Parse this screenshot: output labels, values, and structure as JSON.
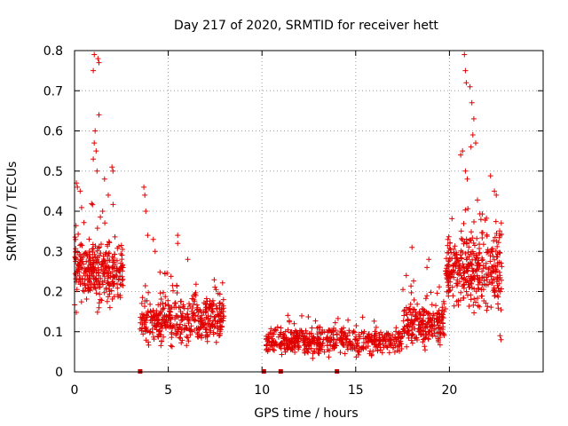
{
  "chart_data": {
    "type": "scatter",
    "title": "Day 217 of 2020, SRMTID for receiver hett",
    "xlabel": "GPS time / hours",
    "ylabel": "SRMTID / TECUs",
    "xlim": [
      0,
      25
    ],
    "ylim": [
      0,
      0.8
    ],
    "xticks": [
      0,
      5,
      10,
      15,
      20
    ],
    "xtick_labels": [
      "0",
      "5",
      "10",
      "15",
      "20"
    ],
    "yticks": [
      0,
      0.1,
      0.2,
      0.3,
      0.4,
      0.5,
      0.6,
      0.7,
      0.8
    ],
    "ytick_labels": [
      "0",
      "0.1",
      "0.2",
      "0.3",
      "0.4",
      "0.5",
      "0.6",
      "0.7",
      "0.8"
    ],
    "grid": true,
    "marker": "+",
    "color": "#ff0000",
    "marker_color": "#e00000",
    "gap_markers_color": "#cc0000",
    "gap_markers": [
      3.5,
      10.1,
      11.0,
      14.0
    ],
    "series": [
      {
        "name": "SRMTID",
        "segments": [
          {
            "x_start": 0.0,
            "x_end": 2.6,
            "n": 320,
            "base": 0.25,
            "spread": 0.09,
            "outliers": [
              [
                1.05,
                0.79
              ],
              [
                1.0,
                0.75
              ],
              [
                1.25,
                0.78
              ],
              [
                1.3,
                0.77
              ],
              [
                1.3,
                0.64
              ],
              [
                1.1,
                0.6
              ],
              [
                1.05,
                0.57
              ],
              [
                1.15,
                0.55
              ],
              [
                1.0,
                0.53
              ],
              [
                1.2,
                0.5
              ],
              [
                1.6,
                0.48
              ],
              [
                2.0,
                0.51
              ],
              [
                2.05,
                0.5
              ],
              [
                0.1,
                0.47
              ],
              [
                0.15,
                0.46
              ],
              [
                0.3,
                0.45
              ],
              [
                1.5,
                0.4
              ],
              [
                1.8,
                0.44
              ]
            ]
          },
          {
            "x_start": 3.5,
            "x_end": 8.0,
            "n": 420,
            "base": 0.13,
            "spread": 0.07,
            "outliers": [
              [
                3.7,
                0.46
              ],
              [
                3.75,
                0.44
              ],
              [
                3.8,
                0.4
              ],
              [
                3.9,
                0.34
              ],
              [
                5.5,
                0.34
              ],
              [
                5.5,
                0.32
              ],
              [
                4.2,
                0.33
              ],
              [
                4.3,
                0.3
              ]
            ]
          },
          {
            "x_start": 10.2,
            "x_end": 17.5,
            "n": 520,
            "base": 0.075,
            "spread": 0.035,
            "outliers": []
          },
          {
            "x_start": 17.5,
            "x_end": 19.8,
            "n": 220,
            "base": 0.12,
            "spread": 0.06,
            "outliers": [
              [
                18.0,
                0.31
              ],
              [
                18.9,
                0.28
              ],
              [
                18.8,
                0.26
              ],
              [
                17.7,
                0.24
              ]
            ]
          },
          {
            "x_start": 19.8,
            "x_end": 22.8,
            "n": 360,
            "base": 0.25,
            "spread": 0.1,
            "outliers": [
              [
                20.8,
                0.79
              ],
              [
                20.85,
                0.75
              ],
              [
                20.9,
                0.72
              ],
              [
                21.1,
                0.71
              ],
              [
                21.2,
                0.67
              ],
              [
                21.3,
                0.63
              ],
              [
                21.25,
                0.59
              ],
              [
                21.15,
                0.56
              ],
              [
                20.7,
                0.55
              ],
              [
                20.6,
                0.54
              ],
              [
                21.4,
                0.57
              ],
              [
                20.85,
                0.5
              ],
              [
                20.95,
                0.48
              ],
              [
                22.4,
                0.45
              ],
              [
                22.5,
                0.44
              ],
              [
                22.7,
                0.34
              ],
              [
                22.7,
                0.09
              ],
              [
                22.75,
                0.08
              ]
            ]
          }
        ]
      }
    ]
  }
}
